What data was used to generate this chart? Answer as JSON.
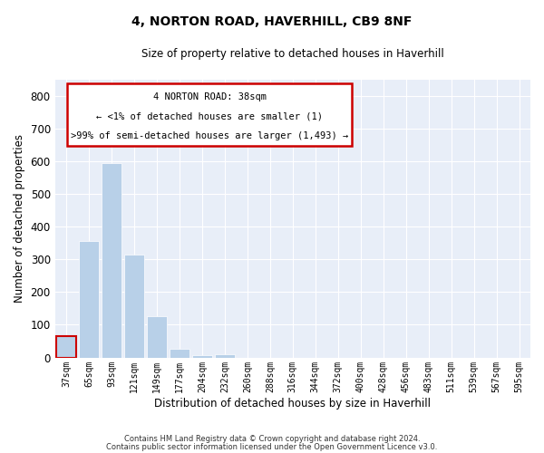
{
  "title1": "4, NORTON ROAD, HAVERHILL, CB9 8NF",
  "title2": "Size of property relative to detached houses in Haverhill",
  "xlabel": "Distribution of detached houses by size in Haverhill",
  "ylabel": "Number of detached properties",
  "bar_color": "#b8d0e8",
  "highlight_color": "#cc0000",
  "background_color": "#e8eef8",
  "categories": [
    "37sqm",
    "65sqm",
    "93sqm",
    "121sqm",
    "149sqm",
    "177sqm",
    "204sqm",
    "232sqm",
    "260sqm",
    "288sqm",
    "316sqm",
    "344sqm",
    "372sqm",
    "400sqm",
    "428sqm",
    "456sqm",
    "483sqm",
    "511sqm",
    "539sqm",
    "567sqm",
    "595sqm"
  ],
  "values": [
    65,
    355,
    595,
    315,
    125,
    27,
    7,
    10,
    0,
    0,
    0,
    0,
    0,
    0,
    0,
    0,
    0,
    0,
    0,
    0,
    0
  ],
  "highlight_bar_index": 0,
  "ylim": [
    0,
    850
  ],
  "yticks": [
    0,
    100,
    200,
    300,
    400,
    500,
    600,
    700,
    800
  ],
  "annotation_text_line1": "4 NORTON ROAD: 38sqm",
  "annotation_text_line2": "← <1% of detached houses are smaller (1)",
  "annotation_text_line3": ">99% of semi-detached houses are larger (1,493) →",
  "footer_line1": "Contains HM Land Registry data © Crown copyright and database right 2024.",
  "footer_line2": "Contains public sector information licensed under the Open Government Licence v3.0."
}
